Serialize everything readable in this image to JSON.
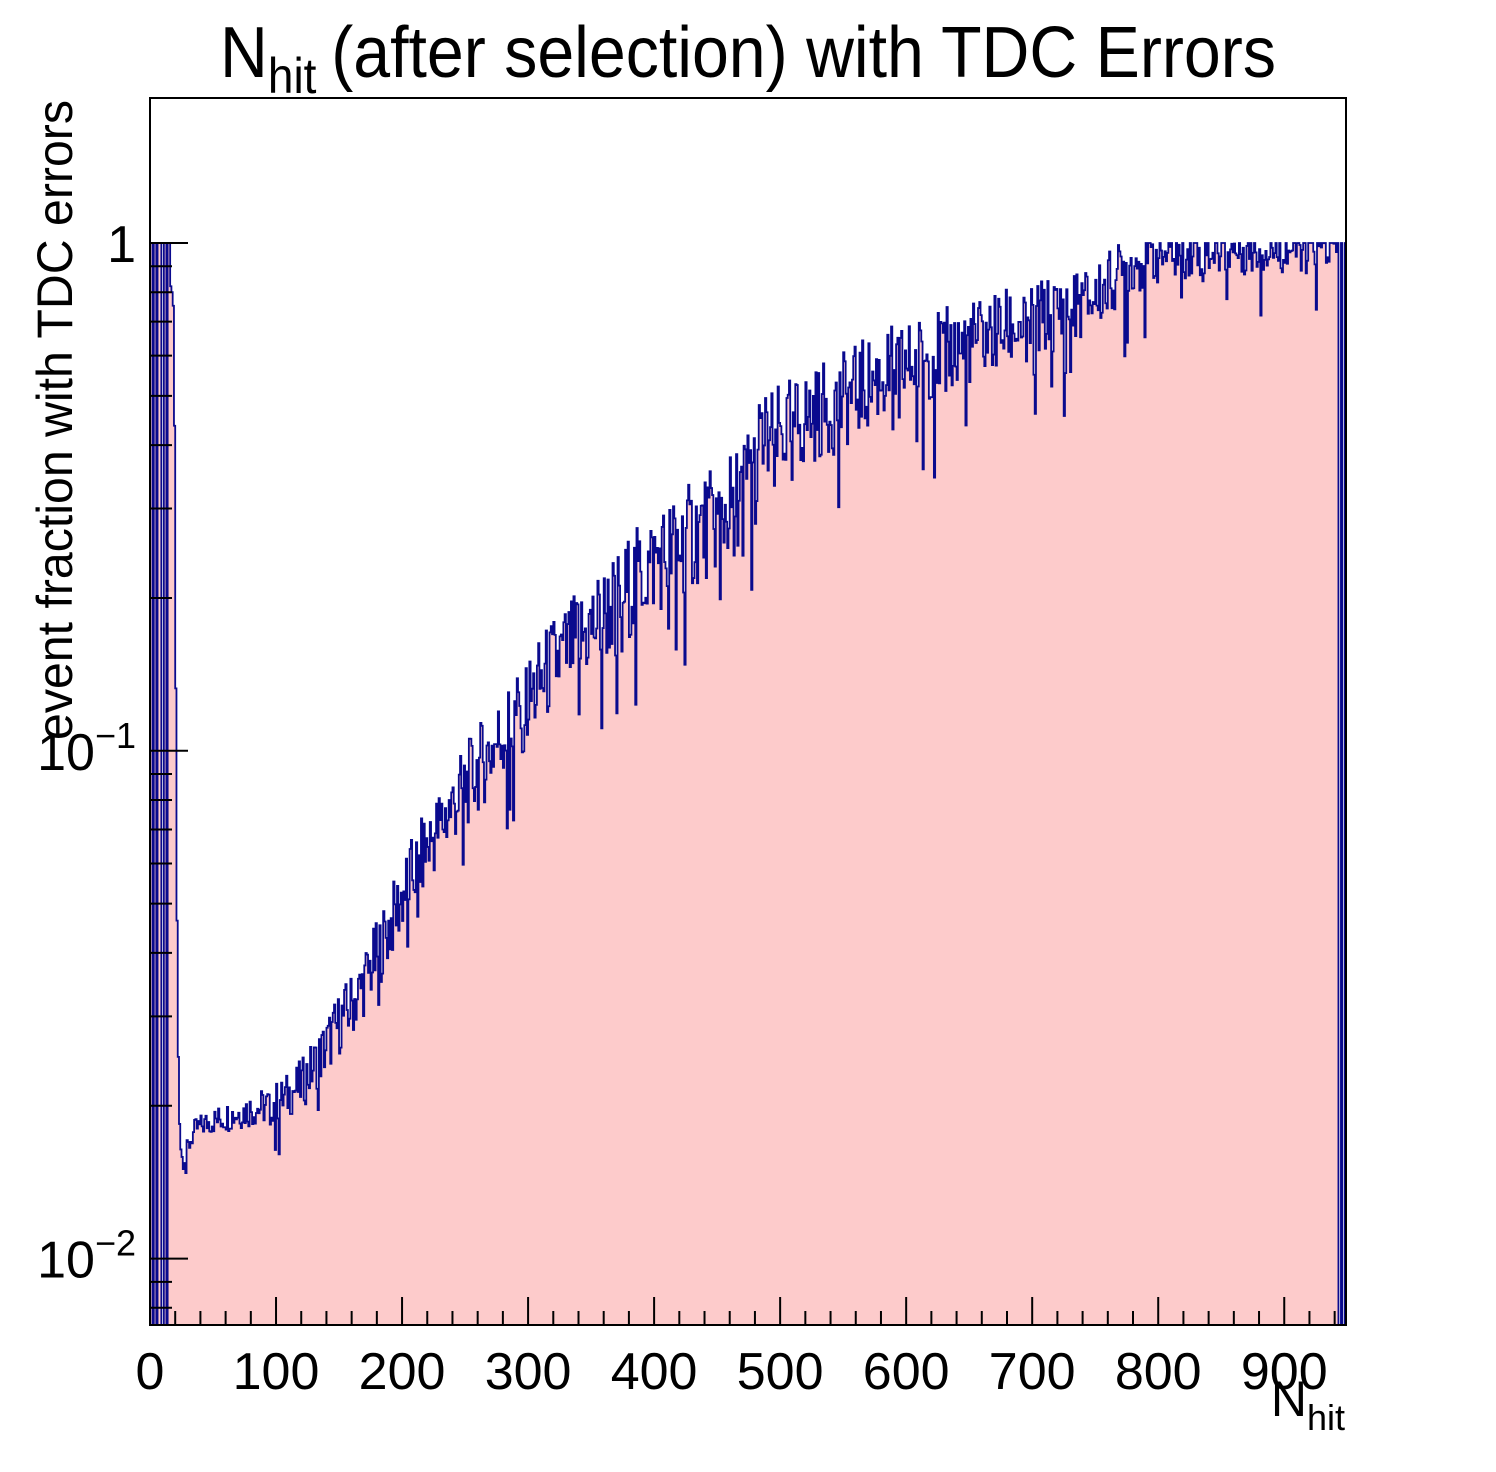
{
  "title": {
    "pre": "N",
    "sub": "hit",
    "post": "(after selection) with TDC Errors"
  },
  "axes": {
    "x": {
      "title_main": "N",
      "title_sub": "hit",
      "min": 0,
      "max": 949,
      "major_ticks": [
        {
          "value": 0,
          "label": "0"
        },
        {
          "value": 100,
          "label": "100"
        },
        {
          "value": 200,
          "label": "200"
        },
        {
          "value": 300,
          "label": "300"
        },
        {
          "value": 400,
          "label": "400"
        },
        {
          "value": 500,
          "label": "500"
        },
        {
          "value": 600,
          "label": "600"
        },
        {
          "value": 700,
          "label": "700"
        },
        {
          "value": 800,
          "label": "800"
        },
        {
          "value": 900,
          "label": "900"
        }
      ],
      "minor_step": 20
    },
    "y": {
      "title": "event fraction with TDC errors",
      "scale": "log",
      "min": 0.0074,
      "max": 1.93,
      "major_ticks": [
        {
          "value": 1,
          "base": "1",
          "exp": ""
        },
        {
          "value": 0.1,
          "base": "10",
          "exp": "−1"
        },
        {
          "value": 0.01,
          "base": "10",
          "exp": "−2"
        }
      ]
    }
  },
  "chart_data": {
    "type": "bar",
    "style": "filled-step-histogram",
    "n_bins": 949,
    "x_range": [
      0,
      949
    ],
    "bin_width": 1,
    "left_bins": [
      1,
      1,
      0,
      1,
      1,
      0,
      1,
      1,
      1,
      0,
      0,
      1,
      1,
      0,
      1,
      1
    ],
    "right_bins": {
      "start": 942,
      "values": [
        1,
        0,
        0,
        1,
        0,
        0,
        1
      ]
    },
    "envelope_points": [
      [
        16,
        0.84
      ],
      [
        18,
        0.78
      ],
      [
        19,
        0.74
      ],
      [
        20,
        0.25
      ],
      [
        21,
        0.07
      ],
      [
        22,
        0.03
      ],
      [
        23,
        0.021
      ],
      [
        24,
        0.017
      ],
      [
        26,
        0.0155
      ],
      [
        30,
        0.0165
      ],
      [
        36,
        0.018
      ],
      [
        45,
        0.0185
      ],
      [
        60,
        0.019
      ],
      [
        75,
        0.0195
      ],
      [
        90,
        0.0199
      ],
      [
        105,
        0.0206
      ],
      [
        120,
        0.022
      ],
      [
        135,
        0.025
      ],
      [
        150,
        0.029
      ],
      [
        165,
        0.033
      ],
      [
        185,
        0.042
      ],
      [
        205,
        0.055
      ],
      [
        222,
        0.066
      ],
      [
        240,
        0.078
      ],
      [
        260,
        0.092
      ],
      [
        280,
        0.108
      ],
      [
        300,
        0.125
      ],
      [
        320,
        0.148
      ],
      [
        340,
        0.165
      ],
      [
        360,
        0.185
      ],
      [
        380,
        0.21
      ],
      [
        400,
        0.235
      ],
      [
        420,
        0.255
      ],
      [
        435,
        0.27
      ],
      [
        455,
        0.29
      ],
      [
        470,
        0.33
      ],
      [
        484,
        0.4
      ],
      [
        500,
        0.42
      ],
      [
        520,
        0.45
      ],
      [
        545,
        0.48
      ],
      [
        565,
        0.52
      ],
      [
        590,
        0.56
      ],
      [
        620,
        0.6
      ],
      [
        645,
        0.63
      ],
      [
        675,
        0.67
      ],
      [
        700,
        0.7
      ],
      [
        722,
        0.73
      ],
      [
        750,
        0.78
      ],
      [
        775,
        0.9
      ],
      [
        800,
        0.95
      ],
      [
        830,
        0.97
      ],
      [
        890,
        0.97
      ],
      [
        920,
        0.98
      ],
      [
        941,
        0.98
      ]
    ],
    "noise_amp_log10": [
      [
        16,
        0.01
      ],
      [
        30,
        0.02
      ],
      [
        60,
        0.03
      ],
      [
        100,
        0.04
      ],
      [
        140,
        0.06
      ],
      [
        180,
        0.07
      ],
      [
        220,
        0.08
      ],
      [
        280,
        0.09
      ],
      [
        340,
        0.1
      ],
      [
        420,
        0.11
      ],
      [
        500,
        0.1
      ],
      [
        600,
        0.09
      ],
      [
        700,
        0.08
      ],
      [
        780,
        0.06
      ],
      [
        860,
        0.05
      ],
      [
        949,
        0.045
      ]
    ],
    "deep_dip_prob": 0.06,
    "deep_dip_factor": 1.9,
    "value_cap": 1.0,
    "colors": {
      "fill": "#fdcbcb",
      "line": "#0a0a8e",
      "frame": "#000000"
    }
  }
}
